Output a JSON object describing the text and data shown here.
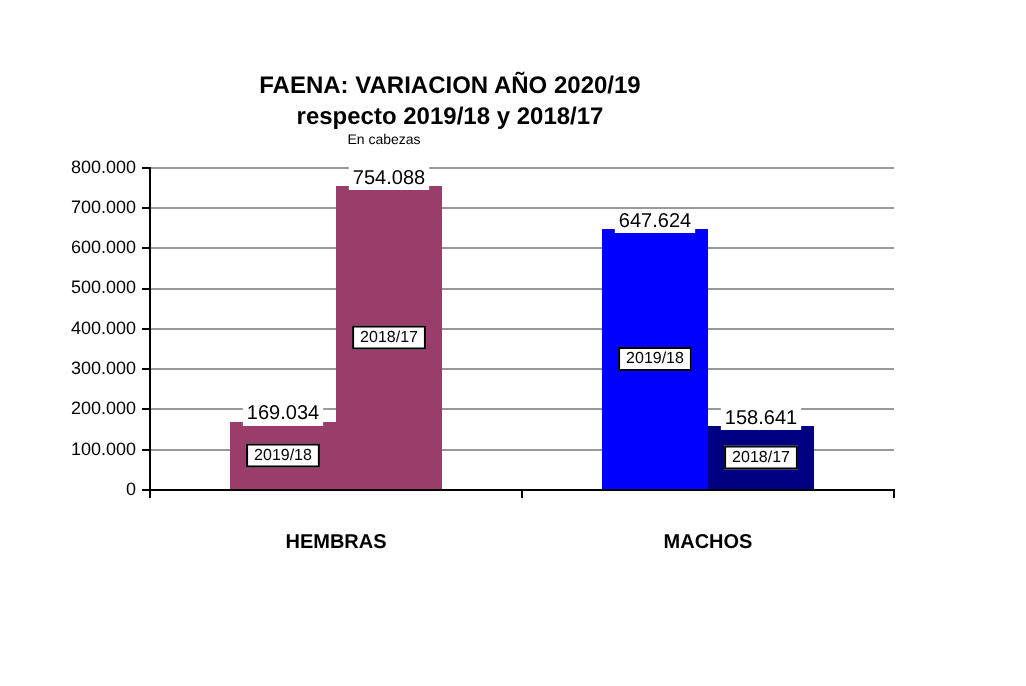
{
  "chart_data": {
    "type": "bar",
    "title": "FAENA: VARIACION AÑO 2020/19",
    "subtitle": "respecto 2019/18 y 2018/17",
    "annotations": [
      "En cabezas"
    ],
    "categories": [
      "HEMBRAS",
      "MACHOS"
    ],
    "series": [
      {
        "name": "2019/18",
        "colors": [
          "#9b3d6a",
          "#0000ff"
        ],
        "values": [
          169034,
          647624
        ],
        "value_labels": [
          "169.034",
          "647.624"
        ]
      },
      {
        "name": "2018/17",
        "colors": [
          "#9b3d6a",
          "#000080"
        ],
        "values": [
          754088,
          158641
        ],
        "value_labels": [
          "754.088",
          "158.641"
        ]
      }
    ],
    "ylim": [
      0,
      800000
    ],
    "yticks": [
      {
        "value": 0,
        "label": "0"
      },
      {
        "value": 100000,
        "label": "100.000"
      },
      {
        "value": 200000,
        "label": "200.000"
      },
      {
        "value": 300000,
        "label": "300.000"
      },
      {
        "value": 400000,
        "label": "400.000"
      },
      {
        "value": 500000,
        "label": "500.000"
      },
      {
        "value": 600000,
        "label": "600.000"
      },
      {
        "value": 700000,
        "label": "700.000"
      },
      {
        "value": 800000,
        "label": "800.000"
      }
    ],
    "grid": "y",
    "legend": false
  }
}
